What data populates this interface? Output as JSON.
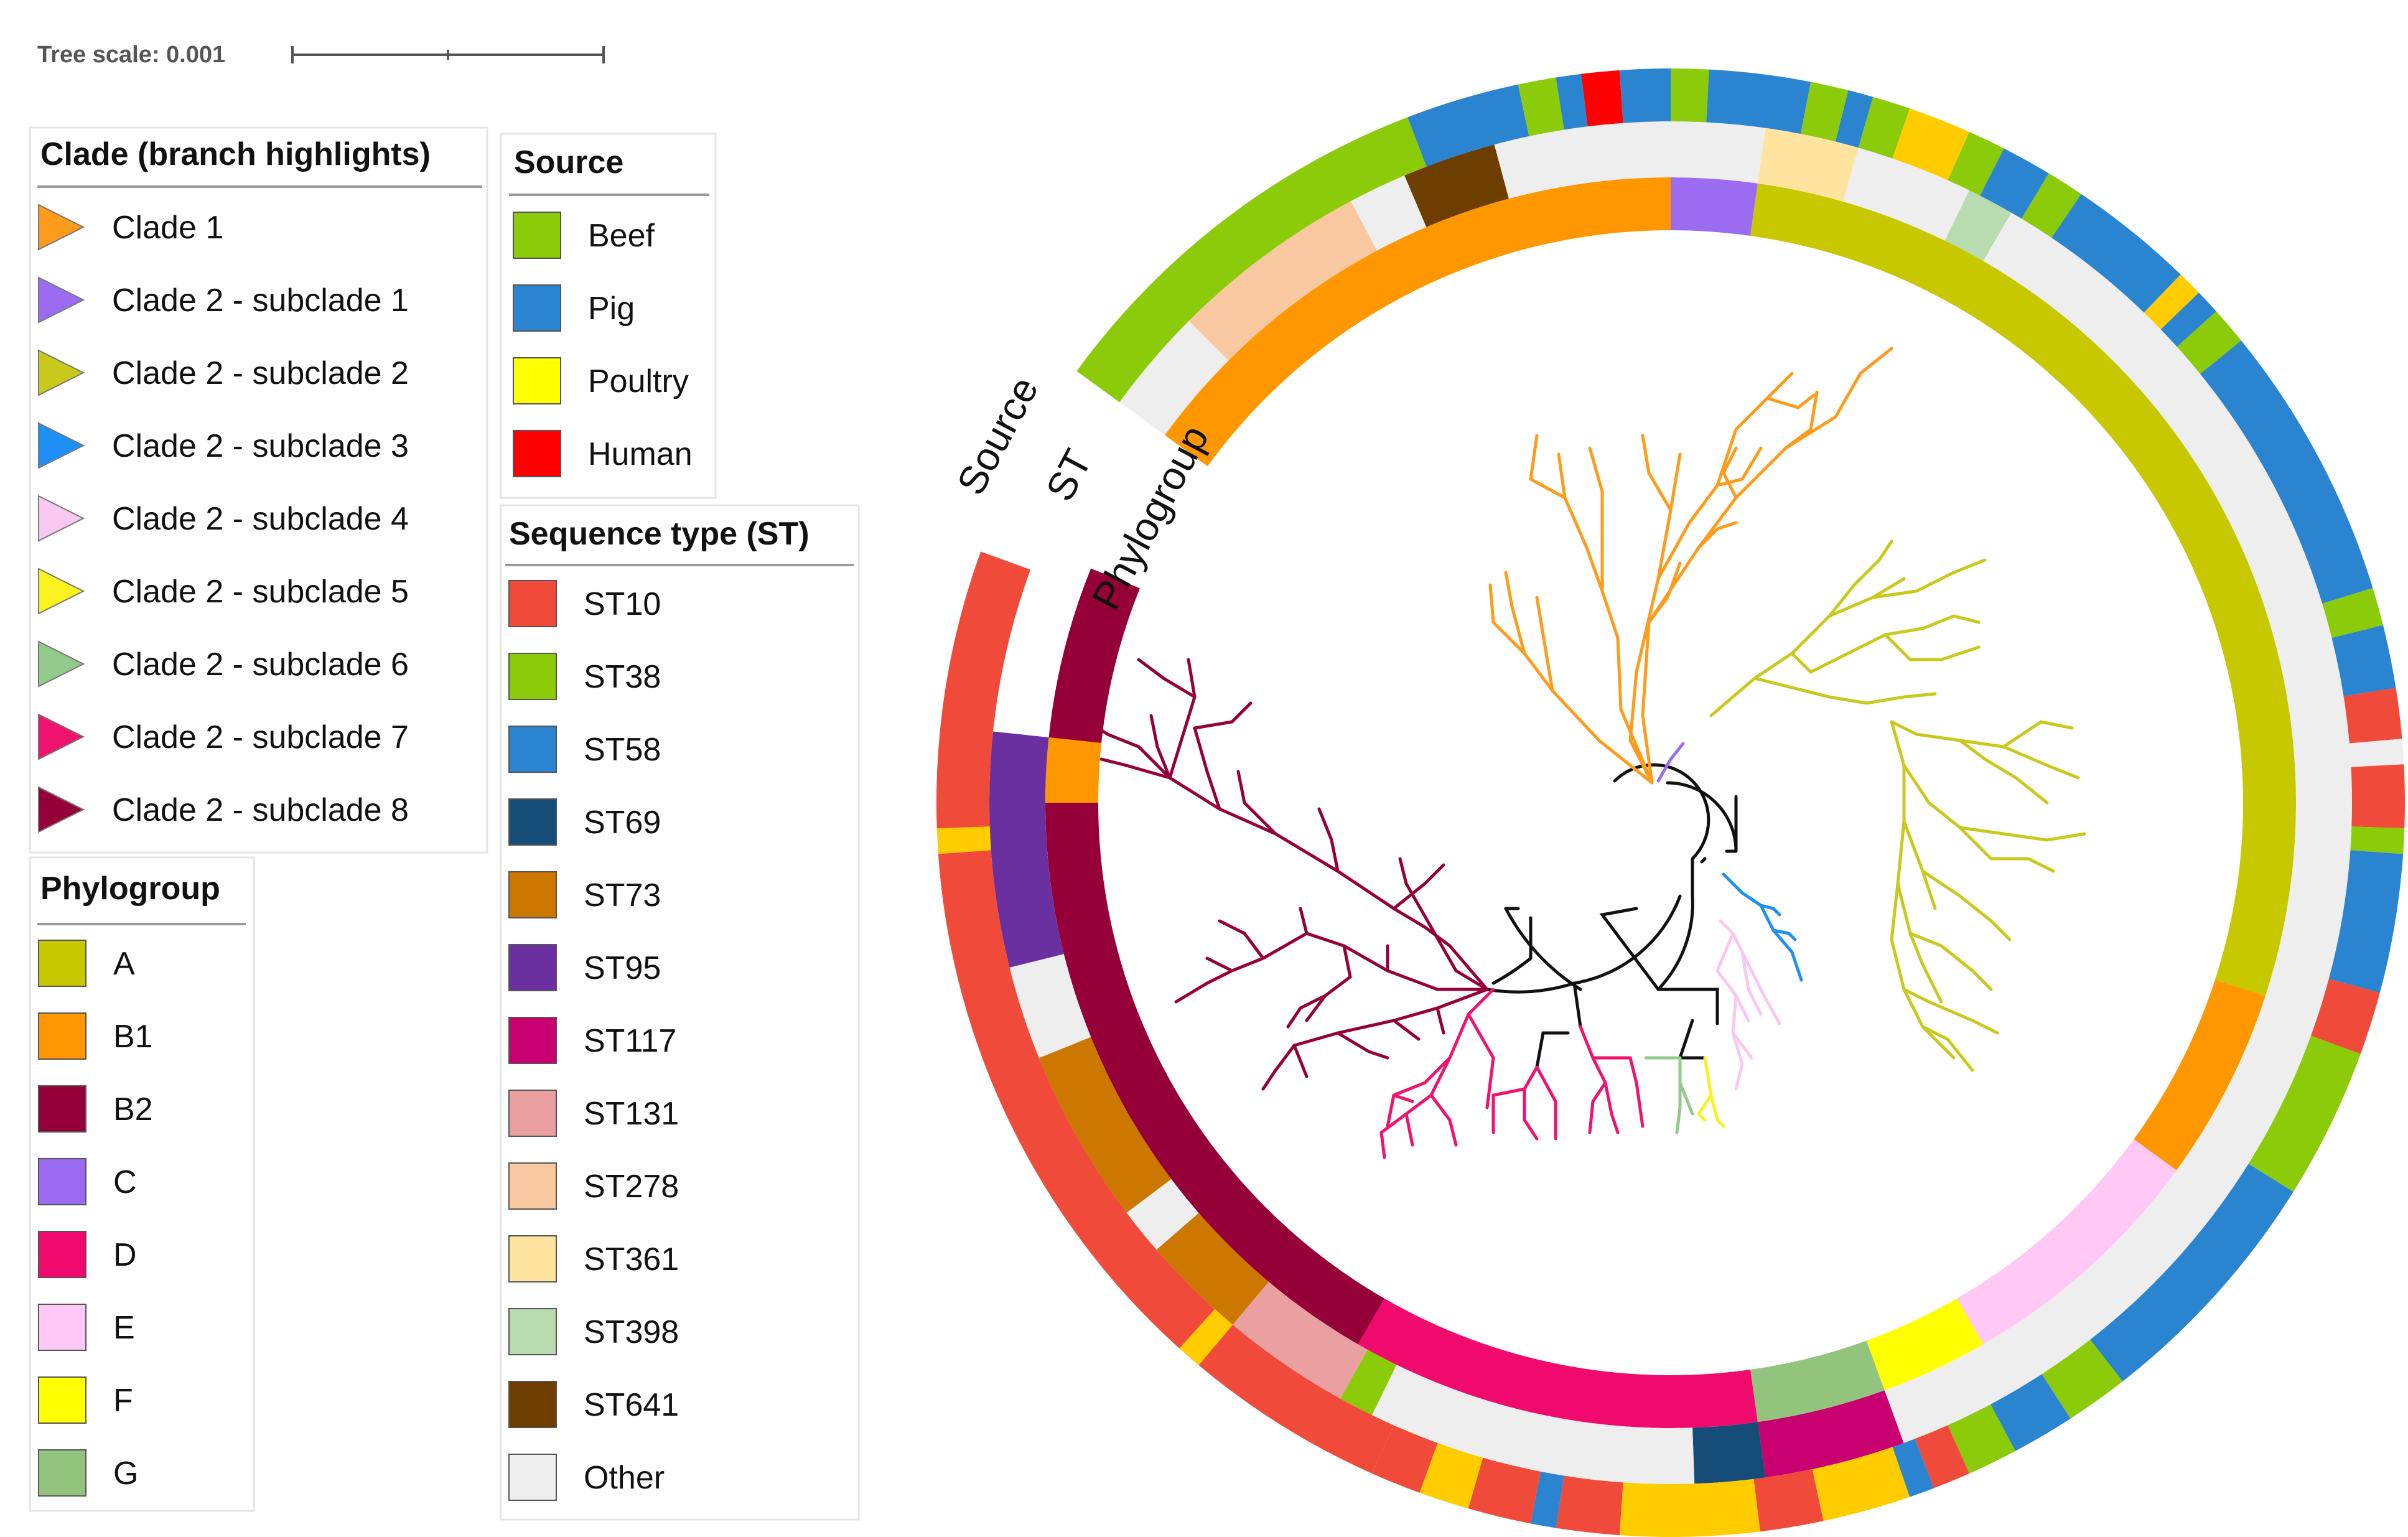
{
  "tree_scale": {
    "label": "Tree scale: 0.001"
  },
  "ring_labels": {
    "source": "Source",
    "st": "ST",
    "phylogroup": "Phylogroup"
  },
  "legends": {
    "clade": {
      "title": "Clade (branch highlights)",
      "items": [
        {
          "label": "Clade 1",
          "color": "#FF9B1A"
        },
        {
          "label": "Clade 2 - subclade 1",
          "color": "#9B6CF2"
        },
        {
          "label": "Clade 2 - subclade 2",
          "color": "#C9C91C"
        },
        {
          "label": "Clade 2 - subclade 3",
          "color": "#1E90F5"
        },
        {
          "label": "Clade 2 - subclade 4",
          "color": "#F9C8F2"
        },
        {
          "label": "Clade 2 - subclade 5",
          "color": "#FAF21E"
        },
        {
          "label": "Clade 2 - subclade 6",
          "color": "#93C98B"
        },
        {
          "label": "Clade 2 - subclade 7",
          "color": "#F0136E"
        },
        {
          "label": "Clade 2 - subclade 8",
          "color": "#960038"
        }
      ]
    },
    "phylogroup": {
      "title": "Phylogroup",
      "items": [
        {
          "label": "A",
          "color": "#C8C800"
        },
        {
          "label": "B1",
          "color": "#FF9800"
        },
        {
          "label": "B2",
          "color": "#960038"
        },
        {
          "label": "C",
          "color": "#9B6CF2"
        },
        {
          "label": "D",
          "color": "#F00A6E"
        },
        {
          "label": "E",
          "color": "#FFC8F5"
        },
        {
          "label": "F",
          "color": "#FFFF00"
        },
        {
          "label": "G",
          "color": "#93C47D"
        }
      ]
    },
    "source": {
      "title": "Source",
      "items": [
        {
          "label": "Beef",
          "color": "#8CCB0A"
        },
        {
          "label": "Pig",
          "color": "#2A84D0"
        },
        {
          "label": "Poultry",
          "color": "#FFFF00"
        },
        {
          "label": "Human",
          "color": "#FF0000"
        }
      ]
    },
    "st": {
      "title": "Sequence type (ST)",
      "items": [
        {
          "label": "ST10",
          "color": "#F04B3A"
        },
        {
          "label": "ST38",
          "color": "#8CCB0A"
        },
        {
          "label": "ST58",
          "color": "#2A84D0"
        },
        {
          "label": "ST69",
          "color": "#154D78"
        },
        {
          "label": "ST73",
          "color": "#CC7700"
        },
        {
          "label": "ST95",
          "color": "#6A30A0"
        },
        {
          "label": "ST117",
          "color": "#C80070"
        },
        {
          "label": "ST131",
          "color": "#EAA0A0"
        },
        {
          "label": "ST278",
          "color": "#F8C8A0"
        },
        {
          "label": "ST361",
          "color": "#FFE4A0"
        },
        {
          "label": "ST398",
          "color": "#B8DBB0"
        },
        {
          "label": "ST641",
          "color": "#6E3E00"
        },
        {
          "label": "Other",
          "color": "#EEEEEE"
        }
      ]
    }
  },
  "rings": {
    "colors": {
      "A": "#C8C800",
      "B1": "#FF9800",
      "B2": "#960038",
      "C": "#9B6CF2",
      "D": "#F00A6E",
      "E": "#FFC8F5",
      "F": "#FFFF00",
      "G": "#93C47D",
      "ST10": "#F04B3A",
      "ST38": "#8CCB0A",
      "ST58": "#2A84D0",
      "ST69": "#154D78",
      "ST73": "#CC7700",
      "ST95": "#6A30A0",
      "ST117": "#C80070",
      "ST131": "#EAA0A0",
      "ST278": "#F8C8A0",
      "ST361": "#FFE4A0",
      "ST398": "#B8DBB0",
      "ST641": "#6E3E00",
      "Other": "#EEEEEE",
      "Beef": "#8CCB0A",
      "Pig": "#2A84D0",
      "Poultry": "#FFCC00",
      "Human": "#FF0000",
      "Red": "#F04B3A"
    },
    "phylogroup": [
      [
        -54,
        0,
        "B1"
      ],
      [
        0,
        8,
        "C"
      ],
      [
        8,
        108,
        "A"
      ],
      [
        108,
        126,
        "B1"
      ],
      [
        126,
        150,
        "E"
      ],
      [
        150,
        160,
        "F"
      ],
      [
        160,
        172,
        "G"
      ],
      [
        172,
        210,
        "D"
      ],
      [
        210,
        270,
        "B2"
      ],
      [
        270,
        276,
        "B1"
      ],
      [
        276,
        292,
        "B2"
      ]
    ],
    "st": [
      [
        -54,
        -45,
        "Other"
      ],
      [
        -45,
        -28,
        "ST278"
      ],
      [
        -28,
        -23,
        "Other"
      ],
      [
        -23,
        -15,
        "ST641"
      ],
      [
        -15,
        8,
        "Other"
      ],
      [
        8,
        16,
        "ST361"
      ],
      [
        16,
        26,
        "Other"
      ],
      [
        26,
        30,
        "ST398"
      ],
      [
        30,
        160,
        "Other"
      ],
      [
        160,
        172,
        "ST117"
      ],
      [
        172,
        178,
        "ST69"
      ],
      [
        178,
        206,
        "Other"
      ],
      [
        206,
        209,
        "ST38"
      ],
      [
        209,
        220,
        "ST131"
      ],
      [
        220,
        229,
        "ST73"
      ],
      [
        229,
        233,
        "Other"
      ],
      [
        233,
        248,
        "ST73"
      ],
      [
        248,
        256,
        "Other"
      ],
      [
        256,
        276,
        "ST95"
      ]
    ],
    "source": [
      [
        -54,
        -21,
        "Beef"
      ],
      [
        -21,
        -12,
        "Pig"
      ],
      [
        -12,
        -9,
        "Beef"
      ],
      [
        -9,
        -7,
        "Pig"
      ],
      [
        -7,
        -4,
        "Human"
      ],
      [
        -4,
        0,
        "Pig"
      ],
      [
        0,
        3,
        "Beef"
      ],
      [
        3,
        11,
        "Pig"
      ],
      [
        11,
        14,
        "Beef"
      ],
      [
        14,
        16,
        "Pig"
      ],
      [
        16,
        19,
        "Beef"
      ],
      [
        19,
        24,
        "Poultry"
      ],
      [
        24,
        27,
        "Beef"
      ],
      [
        27,
        31,
        "Pig"
      ],
      [
        31,
        34,
        "Beef"
      ],
      [
        34,
        44,
        "Pig"
      ],
      [
        44,
        46,
        "Poultry"
      ],
      [
        46,
        48,
        "Pig"
      ],
      [
        48,
        51,
        "Beef"
      ],
      [
        51,
        73,
        "Pig"
      ],
      [
        73,
        76,
        "Beef"
      ],
      [
        76,
        81,
        "Pig"
      ],
      [
        81,
        85,
        "Red"
      ],
      [
        85,
        87,
        "Other"
      ],
      [
        87,
        92,
        "Red"
      ],
      [
        92,
        94,
        "Beef"
      ],
      [
        94,
        105,
        "Pig"
      ],
      [
        105,
        110,
        "Red"
      ],
      [
        110,
        122,
        "Beef"
      ],
      [
        122,
        142,
        "Pig"
      ],
      [
        142,
        147,
        "Beef"
      ],
      [
        147,
        152,
        "Pig"
      ],
      [
        152,
        156,
        "Beef"
      ],
      [
        156,
        159,
        "Red"
      ],
      [
        159,
        161,
        "Pig"
      ],
      [
        161,
        168,
        "Poultry"
      ],
      [
        168,
        173,
        "Red"
      ],
      [
        173,
        184,
        "Poultry"
      ],
      [
        184,
        189,
        "Red"
      ],
      [
        189,
        191,
        "Pig"
      ],
      [
        191,
        196,
        "Red"
      ],
      [
        196,
        200,
        "Poultry"
      ],
      [
        200,
        204,
        "Red"
      ],
      [
        204,
        220,
        "Red"
      ],
      [
        220,
        222,
        "Poultry"
      ],
      [
        222,
        266,
        "Red"
      ],
      [
        266,
        268,
        "Poultry"
      ],
      [
        268,
        290,
        "Red"
      ]
    ]
  }
}
